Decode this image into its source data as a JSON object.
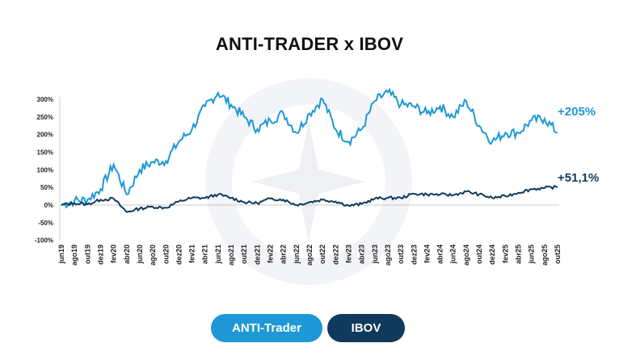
{
  "title": "ANTI-TRADER x IBOV",
  "legend": [
    {
      "label": "ANTI-Trader",
      "color": "#1e98d6"
    },
    {
      "label": "IBOV",
      "color": "#103a5b"
    }
  ],
  "annotations": {
    "anti_trader_end": "+205%",
    "ibov_end": "+51,1%"
  },
  "chart_data": {
    "type": "line",
    "title": "ANTI-TRADER x IBOV",
    "xlabel": "",
    "ylabel": "",
    "ylim": [
      -100,
      300
    ],
    "yticks": [
      "300%",
      "250%",
      "200%",
      "150%",
      "100%",
      "50%",
      "0%",
      "-50%",
      "-100%"
    ],
    "categories": [
      "jun19",
      "ago19",
      "out19",
      "dez19",
      "fev20",
      "abr20",
      "jun20",
      "ago20",
      "out20",
      "dez20",
      "fev21",
      "abr21",
      "jun21",
      "ago21",
      "out21",
      "dez21",
      "fev22",
      "abr22",
      "jun22",
      "ago22",
      "out22",
      "dez22",
      "fev23",
      "abr23",
      "jun23",
      "ago23",
      "out23",
      "dez23",
      "fev24",
      "abr24",
      "jun24",
      "ago24",
      "out24",
      "dez24",
      "fev25",
      "abr25",
      "jun25",
      "ago25",
      "out25"
    ],
    "series": [
      {
        "name": "ANTI-Trader",
        "color": "#1e98d6",
        "values": [
          0,
          12,
          15,
          45,
          115,
          30,
          100,
          122,
          125,
          180,
          215,
          280,
          318,
          285,
          250,
          215,
          240,
          260,
          205,
          260,
          300,
          215,
          180,
          215,
          295,
          320,
          285,
          280,
          260,
          280,
          250,
          295,
          225,
          180,
          205,
          205,
          240,
          245,
          205
        ]
      },
      {
        "name": "IBOV",
        "color": "#103a5b",
        "values": [
          0,
          5,
          2,
          15,
          18,
          -20,
          -10,
          -5,
          -8,
          10,
          20,
          20,
          30,
          20,
          8,
          5,
          18,
          15,
          0,
          8,
          15,
          10,
          -2,
          3,
          18,
          20,
          20,
          32,
          30,
          30,
          28,
          38,
          30,
          20,
          25,
          35,
          45,
          48,
          51.1
        ]
      }
    ],
    "end_labels": {
      "ANTI-Trader": "+205%",
      "IBOV": "+51,1%"
    },
    "grid": false,
    "legend_position": "bottom"
  }
}
